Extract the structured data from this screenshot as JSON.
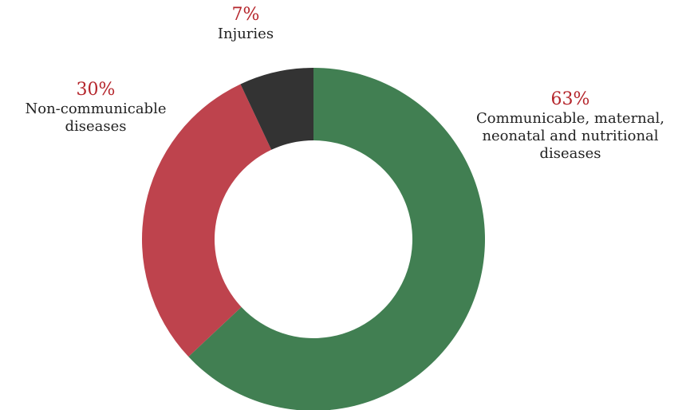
{
  "chart_data": {
    "type": "pie",
    "title": "",
    "donut": true,
    "slices": [
      {
        "label": "Communicable, maternal,\nneonatal and nutritional\ndiseases",
        "value": 63,
        "value_label": "63%",
        "color": "#417f52"
      },
      {
        "label": "Non-communicable\ndiseases",
        "value": 30,
        "value_label": "30%",
        "color": "#be434d"
      },
      {
        "label": "Injuries",
        "value": 7,
        "value_label": "7%",
        "color": "#333333"
      }
    ],
    "start_angle": "12 o'clock",
    "direction": "clockwise",
    "legend": "none",
    "value_label_color": "#b5262c"
  }
}
